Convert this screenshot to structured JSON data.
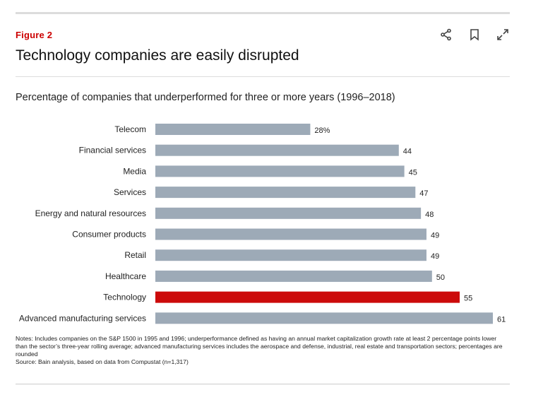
{
  "figure_label": "Figure 2",
  "title": "Technology companies are easily disrupted",
  "icons": {
    "share": "share-icon",
    "bookmark": "bookmark-icon",
    "expand": "expand-icon"
  },
  "notes": {
    "text": "Notes: Includes companies on the S&P 1500 in 1995 and 1996; underperformance defined as having an annual market capitalization growth rate at least 2 percentage points lower than the sector’s three-year rolling average; advanced manufacturing services includes the aerospace and defense, industrial, real estate and transportation sectors; percentages are rounded",
    "source": "Source: Bain analysis, based on data from Compustat (n=1,317)"
  },
  "colors": {
    "bar": "#9daab7",
    "highlight": "#cc0a0a",
    "accent": "#cc0000"
  },
  "chart_data": {
    "type": "bar",
    "orientation": "horizontal",
    "title": "Percentage of companies that underperformed for three or more years (1996–2018)",
    "categories": [
      "Telecom",
      "Financial services",
      "Media",
      "Services",
      "Energy and natural resources",
      "Consumer products",
      "Retail",
      "Healthcare",
      "Technology",
      "Advanced manufacturing services"
    ],
    "values": [
      28,
      44,
      45,
      47,
      48,
      49,
      49,
      50,
      55,
      61
    ],
    "value_labels": [
      "28%",
      "44",
      "45",
      "47",
      "48",
      "49",
      "49",
      "50",
      "55",
      "61"
    ],
    "highlight": "Technology",
    "xlim": [
      0,
      61
    ],
    "grid": false,
    "legend": "none"
  }
}
